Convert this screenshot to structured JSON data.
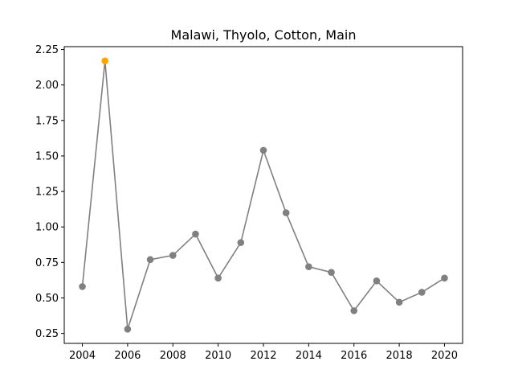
{
  "chart_data": {
    "type": "line",
    "title": "Malawi, Thyolo, Cotton, Main",
    "xlabel": "",
    "ylabel": "",
    "x": [
      2004,
      2005,
      2006,
      2007,
      2008,
      2009,
      2010,
      2011,
      2012,
      2013,
      2014,
      2015,
      2016,
      2017,
      2018,
      2019,
      2020
    ],
    "series": [
      {
        "values": [
          0.58,
          2.17,
          0.28,
          0.77,
          0.8,
          0.95,
          0.64,
          0.89,
          1.54,
          1.1,
          0.72,
          0.68,
          0.41,
          0.62,
          0.47,
          0.54,
          0.64
        ],
        "color": "#808080"
      }
    ],
    "highlight": {
      "x": 2005,
      "y": 2.17,
      "color": "#ffa500"
    },
    "xticks": [
      2004,
      2006,
      2008,
      2010,
      2012,
      2014,
      2016,
      2018,
      2020
    ],
    "yticks": [
      "0.25",
      "0.50",
      "0.75",
      "1.00",
      "1.25",
      "1.50",
      "1.75",
      "2.00",
      "2.25"
    ],
    "xlim": [
      2003.2,
      2020.8
    ],
    "ylim": [
      0.18,
      2.27
    ],
    "grid": false,
    "legend": "none"
  }
}
